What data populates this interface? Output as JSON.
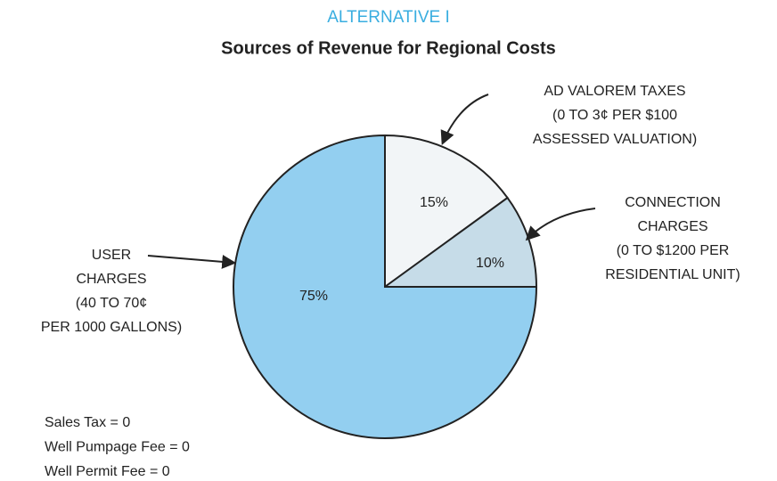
{
  "chart_data": {
    "type": "pie",
    "supertitle": "ALTERNATIVE I",
    "title": "Sources of Revenue for Regional Costs",
    "categories": [
      [
        "AD VALOREM TAXES",
        "(0 TO 3¢ PER $100",
        "ASSESSED VALUATION)"
      ],
      [
        "CONNECTION",
        "CHARGES",
        "(0 TO $1200 PER",
        "RESIDENTIAL UNIT)"
      ],
      [
        "USER",
        "CHARGES",
        "(40 TO 70¢",
        "PER 1000 GALLONS)"
      ]
    ],
    "values": [
      15,
      10,
      75
    ],
    "value_labels": [
      "15%",
      "10%",
      "75%"
    ],
    "colors": [
      "#f2f5f7",
      "#c6dce8",
      "#93cff0"
    ],
    "notes": [
      "Sales Tax = 0",
      "Well Pumpage Fee = 0",
      "Well Permit Fee = 0"
    ]
  }
}
